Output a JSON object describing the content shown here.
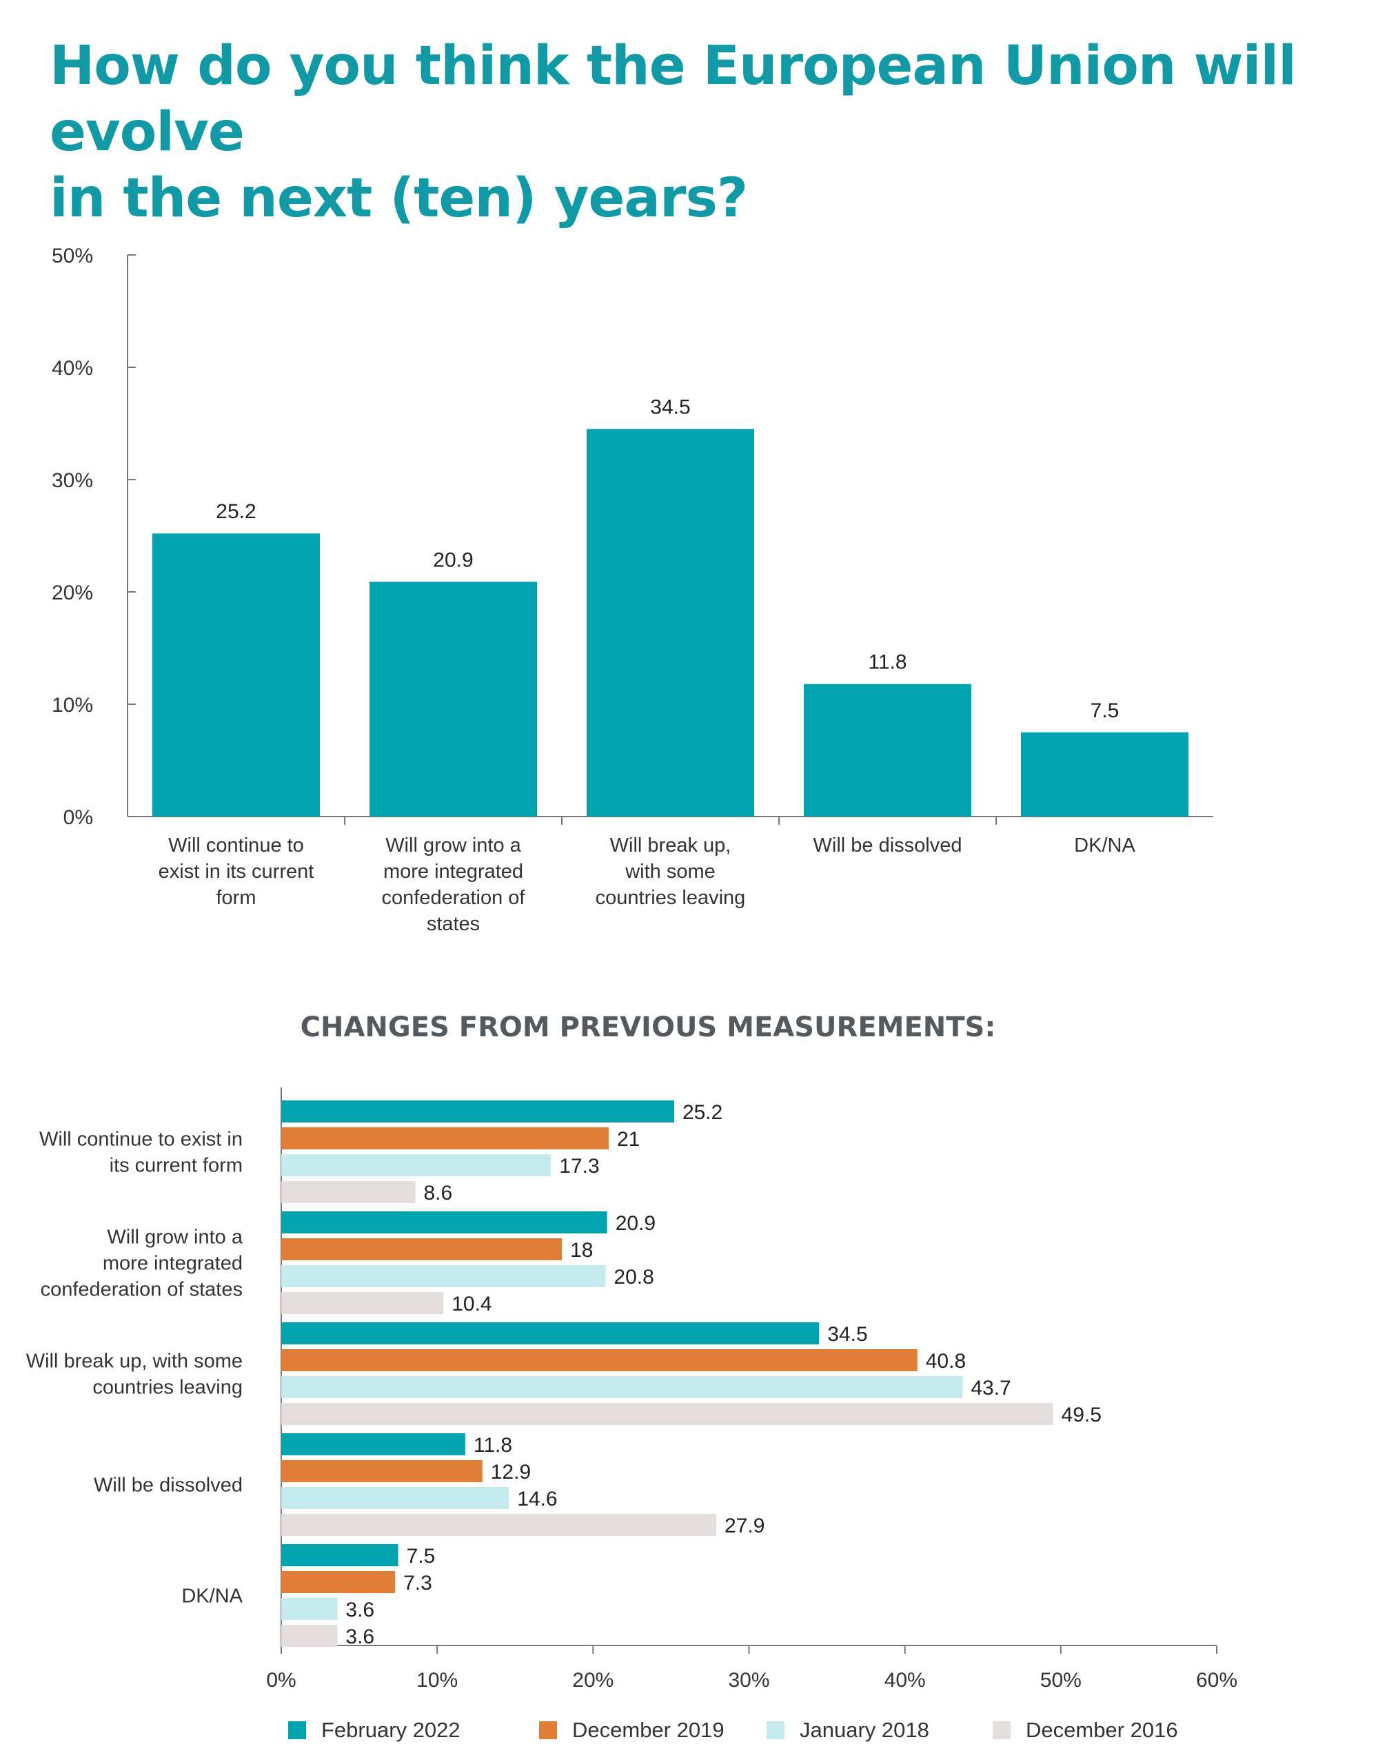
{
  "title_lines": [
    "How do you think the European Union will evolve",
    "in the next (ten) years?"
  ],
  "colors": {
    "teal": "#00a3ae",
    "orange": "#e07d36",
    "light_blue": "#c4eaee",
    "beige": "#e3dedb",
    "title": "#119aa6"
  },
  "chart_data": [
    {
      "type": "bar",
      "title": "",
      "categories": [
        [
          "Will continue to",
          "exist in its current",
          "form"
        ],
        [
          "Will grow into a",
          "more integrated",
          "confederation of",
          "states"
        ],
        [
          "Will break up,",
          "with some",
          "countries leaving"
        ],
        [
          "Will be dissolved"
        ],
        [
          "DK/NA"
        ]
      ],
      "values": [
        25.2,
        20.9,
        34.5,
        11.8,
        7.5
      ],
      "value_labels": [
        "25.2",
        "20.9",
        "34.5",
        "11.8",
        "7.5"
      ],
      "ylim": [
        0,
        50
      ],
      "yticks": [
        "0%",
        "10%",
        "20%",
        "30%",
        "40%",
        "50%"
      ],
      "grid": false
    },
    {
      "type": "bar",
      "orientation": "horizontal",
      "title": "CHANGES FROM PREVIOUS MEASUREMENTS:",
      "categories": [
        [
          "Will continue to exist in",
          "its current form"
        ],
        [
          "Will grow into a",
          "more integrated",
          "confederation of states"
        ],
        [
          "Will break up, with some",
          "countries leaving"
        ],
        [
          "Will be dissolved"
        ],
        [
          "DK/NA"
        ]
      ],
      "series": [
        {
          "name": "February 2022",
          "color": "#00a3ae",
          "values": [
            25.2,
            20.9,
            34.5,
            11.8,
            7.5
          ],
          "labels": [
            "25.2",
            "20.9",
            "34.5",
            "11.8",
            "7.5"
          ]
        },
        {
          "name": "December 2019",
          "color": "#e07d36",
          "values": [
            21,
            18,
            40.8,
            12.9,
            7.3
          ],
          "labels": [
            "21",
            "18",
            "40.8",
            "12.9",
            "7.3"
          ]
        },
        {
          "name": "January 2018",
          "color": "#c4eaee",
          "values": [
            17.3,
            20.8,
            43.7,
            14.6,
            3.6
          ],
          "labels": [
            "17.3",
            "20.8",
            "43.7",
            "14.6",
            "3.6"
          ]
        },
        {
          "name": "December 2016",
          "color": "#e3dedb",
          "values": [
            8.6,
            10.4,
            49.5,
            27.9,
            3.6
          ],
          "labels": [
            "8.6",
            "10.4",
            "49.5",
            "27.9",
            "3.6"
          ]
        }
      ],
      "xlim": [
        0,
        60
      ],
      "xticks": [
        "0%",
        "10%",
        "20%",
        "30%",
        "40%",
        "50%",
        "60%"
      ],
      "legend": "bottom",
      "grid": false
    }
  ]
}
